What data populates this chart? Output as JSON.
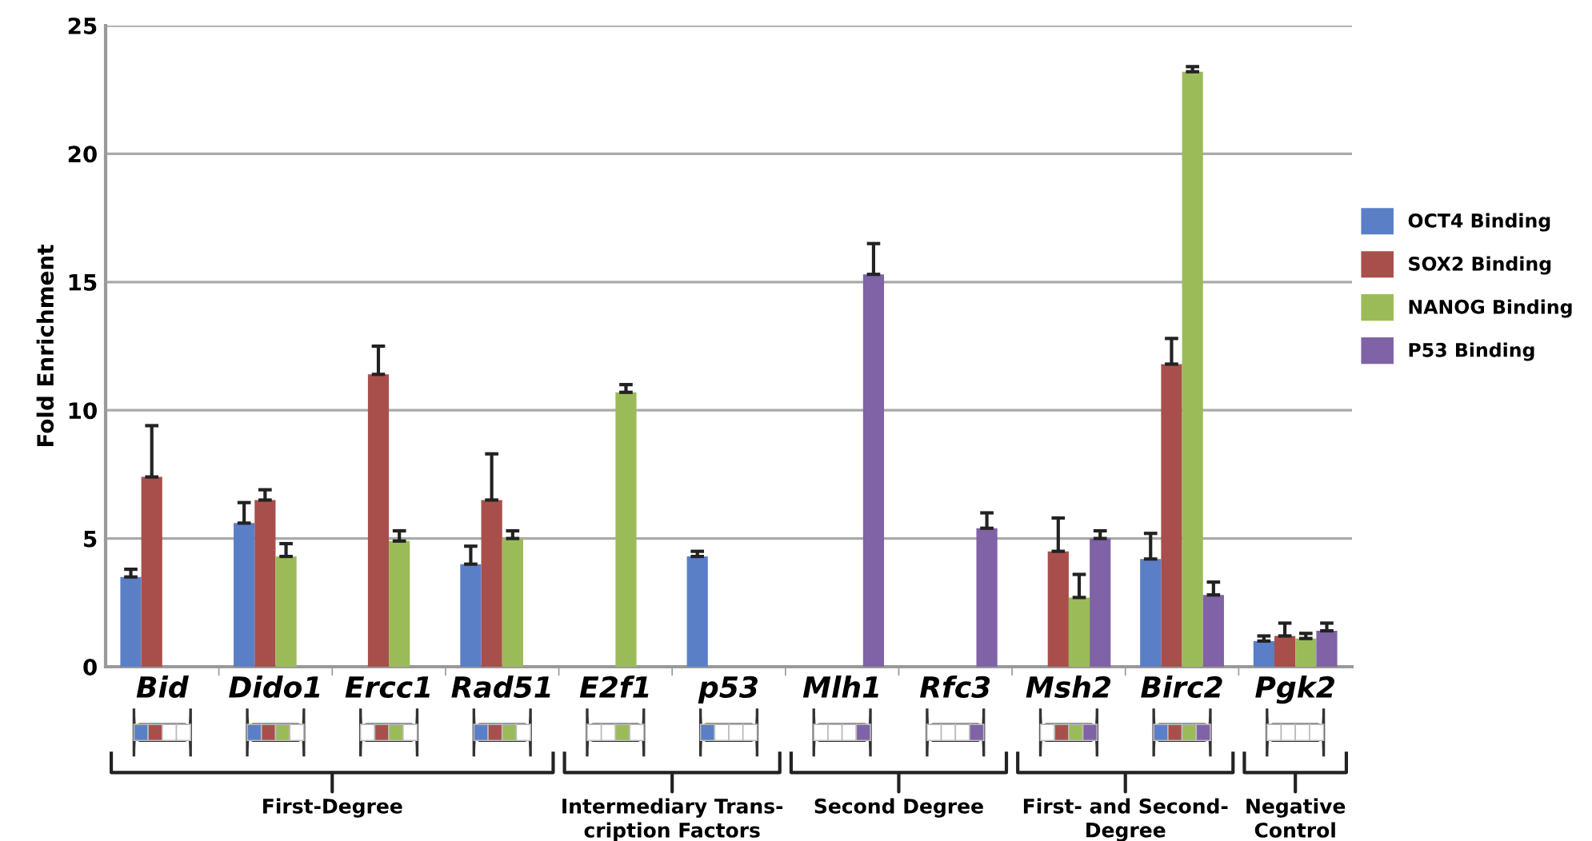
{
  "chart_data": {
    "type": "bar",
    "ylabel": "Fold Enrichment",
    "categories": [
      "Bid",
      "Dido1",
      "Ercc1",
      "Rad51",
      "E2f1",
      "p53",
      "Mlh1",
      "Rfc3",
      "Msh2",
      "Birc2",
      "Pgk2"
    ],
    "series": [
      {
        "name": "OCT4 Binding",
        "color": "#5b7fc7",
        "values": [
          3.5,
          5.6,
          null,
          4.0,
          null,
          4.3,
          null,
          null,
          null,
          4.2,
          1.0
        ],
        "errors": [
          [
            3.5,
            3.8
          ],
          [
            5.6,
            6.4
          ],
          null,
          [
            4.0,
            4.7
          ],
          null,
          [
            4.3,
            4.5
          ],
          null,
          null,
          null,
          [
            4.2,
            5.2
          ],
          [
            1.0,
            1.2
          ]
        ]
      },
      {
        "name": "SOX2 Binding",
        "color": "#a84f4c",
        "values": [
          7.4,
          6.5,
          11.4,
          6.5,
          null,
          null,
          null,
          null,
          4.5,
          11.8,
          1.2
        ],
        "errors": [
          [
            7.4,
            9.4
          ],
          [
            6.5,
            6.9
          ],
          [
            11.4,
            12.5
          ],
          [
            6.5,
            8.3
          ],
          null,
          null,
          null,
          null,
          [
            4.5,
            5.8
          ],
          [
            11.8,
            12.8
          ],
          [
            1.2,
            1.7
          ]
        ]
      },
      {
        "name": "NANOG Binding",
        "color": "#9bbb59",
        "values": [
          null,
          4.3,
          4.9,
          5.0,
          10.7,
          null,
          null,
          null,
          2.7,
          23.2,
          1.1
        ],
        "errors": [
          null,
          [
            4.3,
            4.8
          ],
          [
            4.9,
            5.3
          ],
          [
            5.0,
            5.3
          ],
          [
            10.7,
            11.0
          ],
          null,
          null,
          null,
          [
            2.7,
            3.6
          ],
          [
            23.2,
            23.4
          ],
          [
            1.1,
            1.3
          ]
        ]
      },
      {
        "name": "P53 Binding",
        "color": "#7f63a6",
        "values": [
          null,
          null,
          null,
          null,
          null,
          null,
          15.3,
          5.4,
          5.0,
          2.8,
          1.4
        ],
        "errors": [
          null,
          null,
          null,
          null,
          null,
          null,
          [
            15.3,
            16.5
          ],
          [
            5.4,
            6.0
          ],
          [
            5.0,
            5.3
          ],
          [
            2.8,
            3.3
          ],
          [
            1.4,
            1.7
          ]
        ]
      }
    ],
    "ylim": [
      0,
      25
    ],
    "yticks": [
      0,
      5,
      10,
      15,
      20,
      25
    ],
    "grid": "y",
    "legend": "right",
    "annotations": [
      "First-Degree",
      "Intermediary Trans-\ncription Factors",
      "Second Degree",
      "First- and Second-\nDegree",
      "Negative\nControl"
    ]
  }
}
